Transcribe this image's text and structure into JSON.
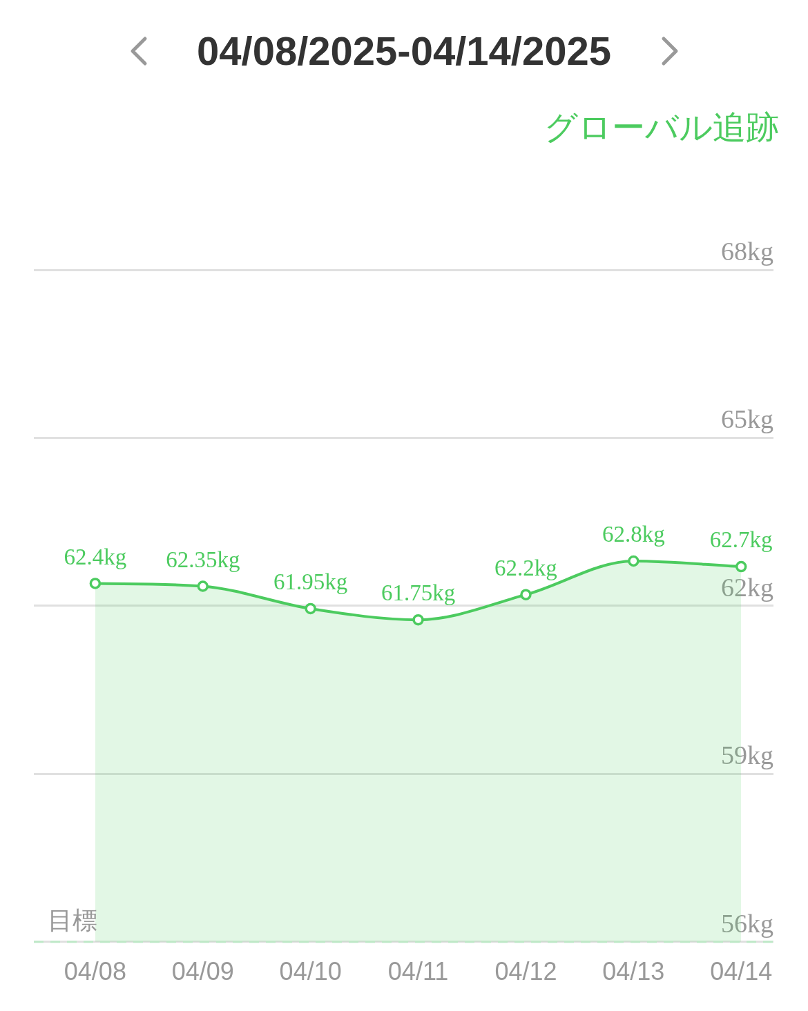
{
  "chart_data": {
    "type": "area",
    "title": "04/08/2025-04/14/2025",
    "subtitle": "グローバル追跡",
    "categories": [
      "04/08",
      "04/09",
      "04/10",
      "04/11",
      "04/12",
      "04/13",
      "04/14"
    ],
    "values": [
      62.4,
      62.35,
      61.95,
      61.75,
      62.2,
      62.8,
      62.7
    ],
    "value_labels": [
      "62.4kg",
      "62.35kg",
      "61.95kg",
      "61.75kg",
      "62.2kg",
      "62.8kg",
      "62.7kg"
    ],
    "color": "#4ccb5f",
    "ylim": [
      56,
      68
    ],
    "yticks": [
      {
        "value": 56,
        "label": "56kg"
      },
      {
        "value": 59,
        "label": "59kg"
      },
      {
        "value": 62,
        "label": "62kg"
      },
      {
        "value": 65,
        "label": "65kg"
      },
      {
        "value": 68,
        "label": "68kg"
      }
    ],
    "grid": "y",
    "marker": "circle",
    "line_style": "solid",
    "ref_lines": [
      {
        "axis": "y",
        "value": 56,
        "label": "目標",
        "color": "#bfe9c8",
        "line_style": "dashed"
      }
    ]
  }
}
